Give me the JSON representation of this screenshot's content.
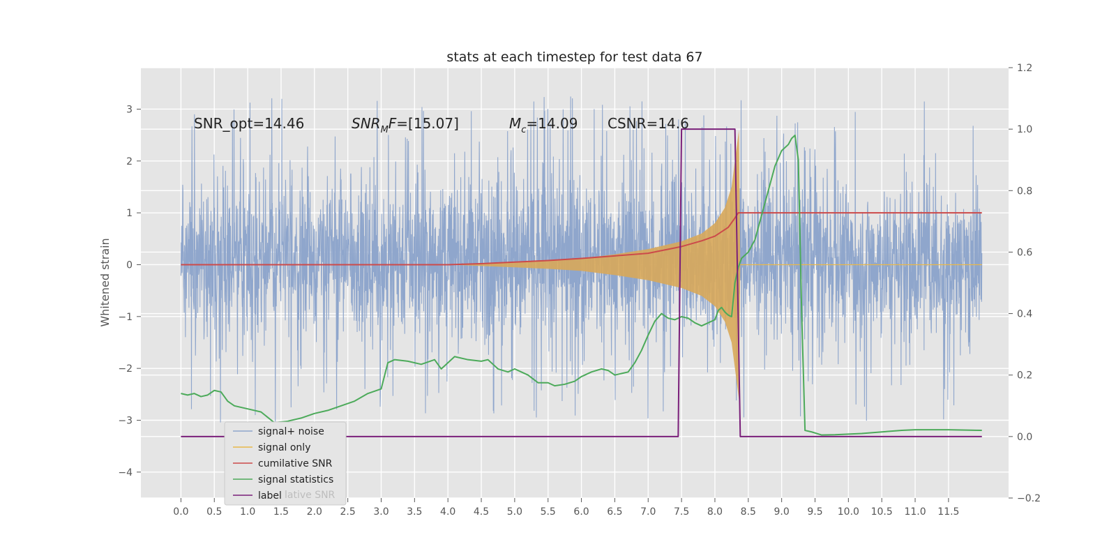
{
  "chart_data": {
    "type": "line",
    "title": "stats at each timestep for test data 67",
    "xlabel": "",
    "ylabel": "Whitened strain",
    "xlim": [
      -0.6,
      12.4
    ],
    "ylim": [
      -4.5,
      3.8
    ],
    "y2lim": [
      -0.2,
      1.2
    ],
    "grid": true,
    "legend_position": "lower-left",
    "x_ticks": [
      "0.0",
      "0.5",
      "1.0",
      "1.5",
      "2.0",
      "2.5",
      "3.0",
      "3.5",
      "4.0",
      "4.5",
      "5.0",
      "5.5",
      "6.0",
      "6.5",
      "7.0",
      "7.5",
      "8.0",
      "8.5",
      "9.0",
      "9.5",
      "10.0",
      "10.5",
      "11.0",
      "11.5"
    ],
    "y_ticks": [
      "3",
      "2",
      "1",
      "0",
      "−1",
      "−2",
      "−3",
      "−4"
    ],
    "y2_ticks": [
      "1.2",
      "1.0",
      "0.8",
      "0.6",
      "0.4",
      "0.2",
      "0.0",
      "−0.2"
    ],
    "annotations": [
      "SNR_opt=14.46",
      "=[15.07]",
      "=14.09",
      "CSNR=14.6"
    ],
    "annotation_math": {
      "snr_base": "SNR",
      "snr_sub": "M",
      "snr_f": "F",
      "mc_base": "M",
      "mc_sub": "c"
    },
    "legend_behind_text": "lative SNR",
    "series": [
      {
        "name": "signal+ noise",
        "color": "#8fa6cc",
        "axis": "left",
        "style": "noise",
        "x_range": [
          0.0,
          12.0
        ],
        "band": [
          -1.2,
          1.4
        ],
        "envelope_max": [
          -4.1,
          3.35
        ]
      },
      {
        "name": "signal only",
        "color": "#e8b84a",
        "fill": "#d8a95a",
        "axis": "left",
        "style": "chirp",
        "x_range": [
          4.0,
          8.38
        ],
        "envelope": [
          [
            4.0,
            0.0
          ],
          [
            5.0,
            0.05
          ],
          [
            5.5,
            0.08
          ],
          [
            6.0,
            0.12
          ],
          [
            6.5,
            0.2
          ],
          [
            7.0,
            0.3
          ],
          [
            7.5,
            0.45
          ],
          [
            7.8,
            0.6
          ],
          [
            8.0,
            0.8
          ],
          [
            8.15,
            1.1
          ],
          [
            8.25,
            1.5
          ],
          [
            8.32,
            2.2
          ],
          [
            8.36,
            2.6
          ],
          [
            8.38,
            0.0
          ]
        ]
      },
      {
        "name": "cumilative SNR",
        "color": "#cc4a4a",
        "axis": "left",
        "points": [
          [
            0,
            0
          ],
          [
            1,
            0
          ],
          [
            2,
            0
          ],
          [
            3,
            0
          ],
          [
            4,
            0
          ],
          [
            4.5,
            0.02
          ],
          [
            5,
            0.05
          ],
          [
            5.5,
            0.08
          ],
          [
            6,
            0.12
          ],
          [
            6.5,
            0.17
          ],
          [
            7,
            0.22
          ],
          [
            7.5,
            0.35
          ],
          [
            7.8,
            0.46
          ],
          [
            8.0,
            0.55
          ],
          [
            8.2,
            0.72
          ],
          [
            8.3,
            0.9
          ],
          [
            8.35,
            1.0
          ],
          [
            12.0,
            1.0
          ]
        ]
      },
      {
        "name": "signal statistics",
        "color": "#4caa5a",
        "axis": "right",
        "points": [
          [
            0,
            0.14
          ],
          [
            0.1,
            0.135
          ],
          [
            0.2,
            0.14
          ],
          [
            0.3,
            0.13
          ],
          [
            0.4,
            0.135
          ],
          [
            0.5,
            0.15
          ],
          [
            0.6,
            0.145
          ],
          [
            0.7,
            0.115
          ],
          [
            0.8,
            0.1
          ],
          [
            1.0,
            0.09
          ],
          [
            1.2,
            0.08
          ],
          [
            1.4,
            0.045
          ],
          [
            1.6,
            0.05
          ],
          [
            1.8,
            0.06
          ],
          [
            2.0,
            0.075
          ],
          [
            2.2,
            0.085
          ],
          [
            2.4,
            0.1
          ],
          [
            2.6,
            0.115
          ],
          [
            2.8,
            0.14
          ],
          [
            3.0,
            0.155
          ],
          [
            3.1,
            0.24
          ],
          [
            3.2,
            0.25
          ],
          [
            3.4,
            0.245
          ],
          [
            3.6,
            0.235
          ],
          [
            3.8,
            0.25
          ],
          [
            3.9,
            0.22
          ],
          [
            4.1,
            0.26
          ],
          [
            4.3,
            0.25
          ],
          [
            4.5,
            0.245
          ],
          [
            4.6,
            0.25
          ],
          [
            4.75,
            0.22
          ],
          [
            4.9,
            0.21
          ],
          [
            5.0,
            0.22
          ],
          [
            5.1,
            0.21
          ],
          [
            5.2,
            0.2
          ],
          [
            5.35,
            0.175
          ],
          [
            5.5,
            0.175
          ],
          [
            5.6,
            0.165
          ],
          [
            5.75,
            0.17
          ],
          [
            5.9,
            0.18
          ],
          [
            6.0,
            0.195
          ],
          [
            6.15,
            0.21
          ],
          [
            6.3,
            0.22
          ],
          [
            6.4,
            0.215
          ],
          [
            6.5,
            0.2
          ],
          [
            6.6,
            0.205
          ],
          [
            6.7,
            0.21
          ],
          [
            6.8,
            0.24
          ],
          [
            6.9,
            0.28
          ],
          [
            7.0,
            0.33
          ],
          [
            7.1,
            0.375
          ],
          [
            7.2,
            0.4
          ],
          [
            7.3,
            0.385
          ],
          [
            7.4,
            0.38
          ],
          [
            7.5,
            0.39
          ],
          [
            7.6,
            0.385
          ],
          [
            7.7,
            0.37
          ],
          [
            7.8,
            0.36
          ],
          [
            7.9,
            0.37
          ],
          [
            8.0,
            0.38
          ],
          [
            8.05,
            0.41
          ],
          [
            8.1,
            0.42
          ],
          [
            8.15,
            0.405
          ],
          [
            8.2,
            0.395
          ],
          [
            8.25,
            0.39
          ],
          [
            8.3,
            0.5
          ],
          [
            8.35,
            0.55
          ],
          [
            8.4,
            0.58
          ],
          [
            8.5,
            0.6
          ],
          [
            8.6,
            0.64
          ],
          [
            8.7,
            0.72
          ],
          [
            8.8,
            0.8
          ],
          [
            8.9,
            0.88
          ],
          [
            9.0,
            0.93
          ],
          [
            9.1,
            0.95
          ],
          [
            9.15,
            0.97
          ],
          [
            9.2,
            0.98
          ],
          [
            9.25,
            0.9
          ],
          [
            9.3,
            0.4
          ],
          [
            9.35,
            0.02
          ],
          [
            9.45,
            0.015
          ],
          [
            9.6,
            0.005
          ],
          [
            9.8,
            0.006
          ],
          [
            10.0,
            0.008
          ],
          [
            10.2,
            0.01
          ],
          [
            10.5,
            0.015
          ],
          [
            10.8,
            0.02
          ],
          [
            11.0,
            0.022
          ],
          [
            11.5,
            0.022
          ],
          [
            12.0,
            0.02
          ]
        ]
      },
      {
        "name": "label",
        "color": "#7a1f7a",
        "axis": "right",
        "points": [
          [
            0,
            0
          ],
          [
            7.45,
            0
          ],
          [
            7.5,
            1
          ],
          [
            8.3,
            1
          ],
          [
            8.38,
            0
          ],
          [
            12.0,
            0
          ]
        ]
      }
    ]
  }
}
